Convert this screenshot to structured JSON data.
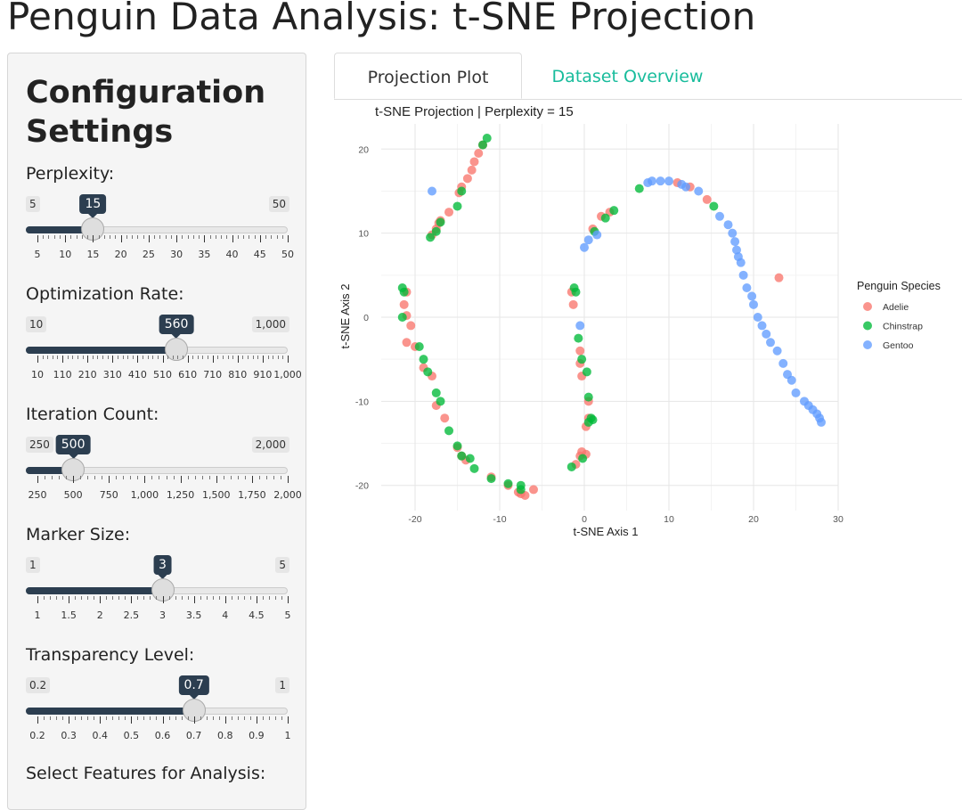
{
  "app": {
    "title": "Penguin Data Analysis: t-SNE Projection"
  },
  "sidebar": {
    "heading": "Configuration Settings",
    "sliders": [
      {
        "label": "Perplexity:",
        "min": "5",
        "max": "50",
        "min_value": 5,
        "max_value": 50,
        "value_label": "15",
        "value": 15,
        "ticks": [
          "5",
          "10",
          "15",
          "20",
          "25",
          "30",
          "35",
          "40",
          "45",
          "50"
        ]
      },
      {
        "label": "Optimization Rate:",
        "min": "10",
        "max": "1,000",
        "min_value": 10,
        "max_value": 1000,
        "value_label": "560",
        "value": 560,
        "ticks": [
          "10",
          "110",
          "210",
          "310",
          "410",
          "510",
          "610",
          "710",
          "810",
          "910",
          "1,000"
        ]
      },
      {
        "label": "Iteration Count:",
        "min": "250",
        "max": "2,000",
        "min_value": 250,
        "max_value": 2000,
        "value_label": "500",
        "value": 500,
        "ticks": [
          "250",
          "500",
          "750",
          "1,000",
          "1,250",
          "1,500",
          "1,750",
          "2,000"
        ]
      },
      {
        "label": "Marker Size:",
        "min": "1",
        "max": "5",
        "min_value": 1,
        "max_value": 5,
        "value_label": "3",
        "value": 3,
        "ticks": [
          "1",
          "1.5",
          "2",
          "2.5",
          "3",
          "3.5",
          "4",
          "4.5",
          "5"
        ]
      },
      {
        "label": "Transparency Level:",
        "min": "0.2",
        "max": "1",
        "min_value": 0.2,
        "max_value": 1,
        "value_label": "0.7",
        "value": 0.7,
        "ticks": [
          "0.2",
          "0.3",
          "0.4",
          "0.5",
          "0.6",
          "0.7",
          "0.8",
          "0.9",
          "1"
        ]
      }
    ],
    "features_label": "Select Features for Analysis:"
  },
  "tabs": [
    {
      "label": "Projection Plot",
      "active": true
    },
    {
      "label": "Dataset Overview",
      "active": false
    }
  ],
  "colors": {
    "accent": "#18bc9c",
    "slider": "#2c3e50"
  },
  "chart_data": {
    "type": "scatter",
    "title": "t-SNE Projection | Perplexity = 15",
    "xlabel": "t-SNE Axis 1",
    "ylabel": "t-SNE Axis 2",
    "xlim": [
      -24,
      30
    ],
    "ylim": [
      -23,
      23
    ],
    "x_ticks": [
      -20,
      -10,
      0,
      10,
      20,
      30
    ],
    "y_ticks": [
      -20,
      -10,
      0,
      10,
      20
    ],
    "grid": true,
    "legend_title": "Penguin Species",
    "legend_position": "right",
    "series": [
      {
        "name": "Adelie",
        "color": "#f8766d",
        "points": [
          [
            -12,
            20.5
          ],
          [
            -12.5,
            19.5
          ],
          [
            -13,
            18.5
          ],
          [
            -13.3,
            17.5
          ],
          [
            -13.8,
            16.5
          ],
          [
            -14.5,
            15.5
          ],
          [
            -14.8,
            14.8
          ],
          [
            -16,
            12.5
          ],
          [
            -17,
            11.5
          ],
          [
            -17.5,
            10.5
          ],
          [
            -18,
            9.8
          ],
          [
            -17.2,
            11.2
          ],
          [
            -21,
            3
          ],
          [
            -21.3,
            1.5
          ],
          [
            -21,
            0.2
          ],
          [
            -20.5,
            -1
          ],
          [
            -21,
            -3
          ],
          [
            -20,
            -3.5
          ],
          [
            -19,
            -6
          ],
          [
            -18,
            -7
          ],
          [
            -17.5,
            -10.5
          ],
          [
            -16.5,
            -12
          ],
          [
            -15,
            -15.5
          ],
          [
            -14.5,
            -16.5
          ],
          [
            -14,
            -17
          ],
          [
            -11,
            -19
          ],
          [
            -9,
            -20
          ],
          [
            -7.5,
            -21
          ],
          [
            -7,
            -21.2
          ],
          [
            -6,
            -20.5
          ],
          [
            -7.8,
            -20.8
          ],
          [
            -1.5,
            3
          ],
          [
            -1.3,
            1.5
          ],
          [
            -0.5,
            -4
          ],
          [
            -0.5,
            -5.5
          ],
          [
            -0.3,
            -7
          ],
          [
            0.5,
            -10
          ],
          [
            0.5,
            -12
          ],
          [
            0.2,
            -13
          ],
          [
            -0.3,
            -16
          ],
          [
            0.2,
            -16.3
          ],
          [
            -0.5,
            -16.5
          ],
          [
            -1,
            -17.5
          ],
          [
            1,
            10.5
          ],
          [
            2,
            12
          ],
          [
            3,
            12.5
          ],
          [
            11,
            16
          ],
          [
            12.5,
            15.5
          ],
          [
            14.5,
            14
          ],
          [
            23,
            4.7
          ]
        ]
      },
      {
        "name": "Chinstrap",
        "color": "#00ba38",
        "points": [
          [
            -11.5,
            21.3
          ],
          [
            -12,
            20.5
          ],
          [
            -14.5,
            15
          ],
          [
            -15,
            13.2
          ],
          [
            -17,
            11.3
          ],
          [
            -17.5,
            10.2
          ],
          [
            -18.2,
            9.5
          ],
          [
            -21.5,
            3.5
          ],
          [
            -21.3,
            3
          ],
          [
            -21.5,
            0
          ],
          [
            -19.5,
            -3.5
          ],
          [
            -19,
            -5
          ],
          [
            -18.5,
            -6.5
          ],
          [
            -17.5,
            -9
          ],
          [
            -17,
            -10
          ],
          [
            -16,
            -13.5
          ],
          [
            -15,
            -15.3
          ],
          [
            -14.5,
            -16.5
          ],
          [
            -13.5,
            -16.8
          ],
          [
            -13,
            -18
          ],
          [
            -11,
            -19.2
          ],
          [
            -9,
            -19.8
          ],
          [
            -7.5,
            -20
          ],
          [
            -7.5,
            -20.5
          ],
          [
            -1.2,
            3.5
          ],
          [
            -1,
            3
          ],
          [
            -0.7,
            -2.5
          ],
          [
            -0.3,
            -5
          ],
          [
            0.3,
            -6.5
          ],
          [
            0.5,
            -9.5
          ],
          [
            0.8,
            -12
          ],
          [
            1,
            -12.2
          ],
          [
            0.5,
            -12.5
          ],
          [
            -0.2,
            -16.8
          ],
          [
            -1.5,
            -17.8
          ],
          [
            1.2,
            10.2
          ],
          [
            2.5,
            11.8
          ],
          [
            3.5,
            12.7
          ],
          [
            6.5,
            15.3
          ],
          [
            15.3,
            13.2
          ]
        ]
      },
      {
        "name": "Gentoo",
        "color": "#619cff",
        "points": [
          [
            -18,
            15
          ],
          [
            -0.5,
            -1
          ],
          [
            0,
            8.3
          ],
          [
            0.5,
            9.2
          ],
          [
            1.5,
            9.8
          ],
          [
            7.5,
            16
          ],
          [
            8,
            16.2
          ],
          [
            9,
            16.2
          ],
          [
            10,
            16.2
          ],
          [
            11.5,
            15.8
          ],
          [
            12,
            15.5
          ],
          [
            13.5,
            15
          ],
          [
            16,
            12
          ],
          [
            17,
            11
          ],
          [
            17.5,
            10
          ],
          [
            17.8,
            9
          ],
          [
            18,
            8
          ],
          [
            18.2,
            7.2
          ],
          [
            18.5,
            6.5
          ],
          [
            18.8,
            5
          ],
          [
            19.2,
            3.5
          ],
          [
            19.8,
            2.5
          ],
          [
            20,
            1.5
          ],
          [
            20.5,
            0
          ],
          [
            21,
            -1
          ],
          [
            21.5,
            -2
          ],
          [
            22,
            -3
          ],
          [
            22.8,
            -4
          ],
          [
            23.5,
            -5.5
          ],
          [
            24,
            -6.8
          ],
          [
            24.5,
            -7.5
          ],
          [
            25,
            -9
          ],
          [
            26,
            -10
          ],
          [
            26.5,
            -10.5
          ],
          [
            27,
            -11
          ],
          [
            27.5,
            -11.5
          ],
          [
            27.8,
            -12
          ],
          [
            28,
            -12.5
          ]
        ]
      }
    ]
  }
}
